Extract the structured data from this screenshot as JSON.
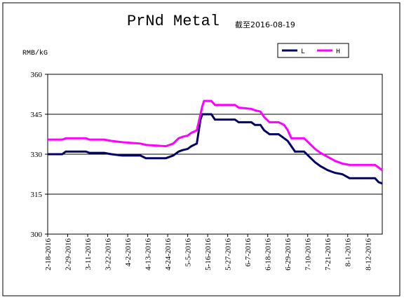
{
  "chart_data": {
    "type": "line",
    "title": "PrNd Metal",
    "subtitle": "截至2016-08-19",
    "y_label": "RMB/kG",
    "x": [
      "2-18-2016",
      "2-26-2016",
      "2-28-2016",
      "3-10-2016",
      "3-12-2016",
      "3-20-2016",
      "3-24-2016",
      "3-30-2016",
      "4-9-2016",
      "4-12-2016",
      "4-23-2016",
      "4-27-2016",
      "4-30-2016",
      "5-2-2016",
      "5-5-2016",
      "5-7-2016",
      "5-10-2016",
      "5-12-2016",
      "5-13-2016",
      "5-14-2016",
      "5-18-2016",
      "5-20-2016",
      "5-31-2016",
      "6-2-2016",
      "6-9-2016",
      "6-11-2016",
      "6-14-2016",
      "6-16-2016",
      "6-19-2016",
      "6-24-2016",
      "6-27-2016",
      "6-29-2016",
      "7-1-2016",
      "7-3-2016",
      "7-8-2016",
      "7-11-2016",
      "7-14-2016",
      "7-17-2016",
      "7-21-2016",
      "7-25-2016",
      "7-29-2016",
      "8-2-2016",
      "8-16-2016",
      "8-18-2016",
      "8-20-2016"
    ],
    "series": [
      {
        "name": "L",
        "color": "#000066",
        "values": [
          330,
          330,
          331,
          331,
          330.5,
          330.5,
          330,
          329.5,
          329.5,
          328.5,
          328.5,
          329.5,
          331,
          331.5,
          332,
          333,
          334,
          343,
          345,
          345,
          345,
          343,
          343,
          342,
          342,
          341,
          341,
          339,
          337.5,
          337.5,
          336,
          335,
          333,
          331,
          331,
          329,
          327,
          325.5,
          324,
          323,
          322.5,
          321,
          321,
          319.5,
          319
        ]
      },
      {
        "name": "H",
        "color": "#ff00ff",
        "values": [
          335.5,
          335.5,
          336,
          336,
          335.5,
          335.5,
          335,
          334.5,
          334,
          333.5,
          333,
          334,
          336,
          336.5,
          337,
          338,
          339,
          345,
          348,
          350,
          350,
          348.5,
          348.5,
          347.5,
          347,
          346.5,
          346,
          344,
          342,
          342,
          341,
          339,
          336,
          336,
          336,
          334,
          332,
          330.5,
          329,
          327.5,
          326.5,
          326,
          326,
          325,
          324
        ]
      }
    ],
    "xticks": [
      "2-18-2016",
      "2-29-2016",
      "3-11-2016",
      "3-22-2016",
      "4-2-2016",
      "4-13-2016",
      "4-24-2016",
      "5-5-2016",
      "5-16-2016",
      "5-27-2016",
      "6-7-2016",
      "6-18-2016",
      "6-29-2016",
      "7-10-2016",
      "7-21-2016",
      "8-1-2016",
      "8-12-2016"
    ],
    "ylim": [
      300,
      360
    ],
    "yticks": [
      300,
      315,
      330,
      345,
      360
    ],
    "grid": true
  }
}
